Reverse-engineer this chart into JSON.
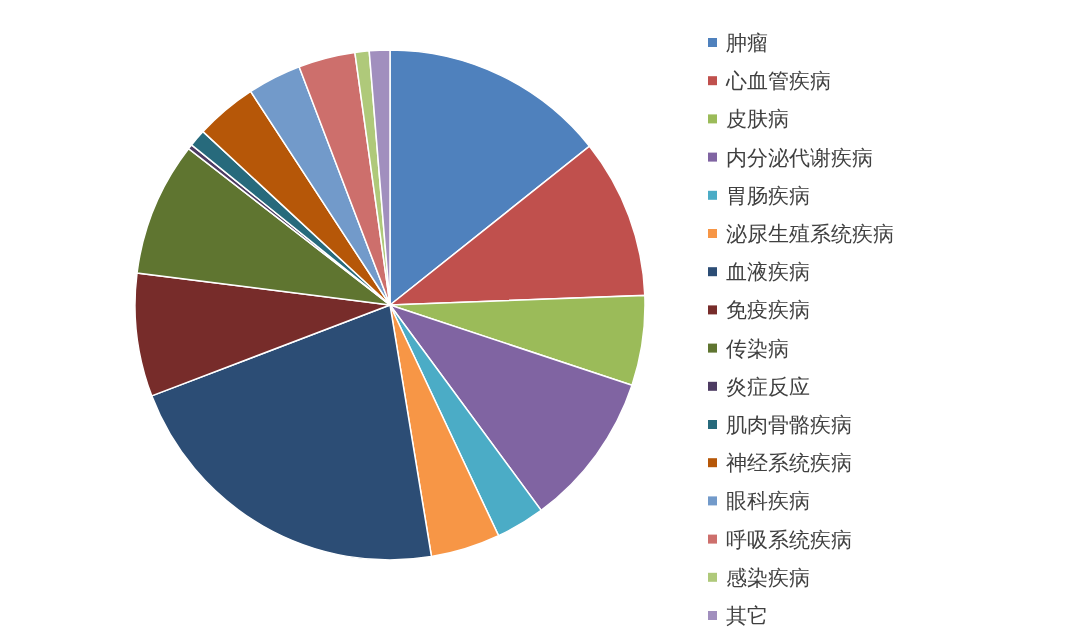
{
  "chart_data": {
    "type": "pie",
    "legend": "right",
    "categories": [
      "肿瘤",
      "心血管疾病",
      "皮肤病",
      "内分泌代谢疾病",
      "胃肠疾病",
      "泌尿生殖系统疾病",
      "血液疾病",
      "免疫疾病",
      "传染病",
      "炎症反应",
      "肌肉骨骼疾病",
      "神经系统疾病",
      "眼科疾病",
      "呼吸系统疾病",
      "感染疾病",
      "其它"
    ],
    "values": [
      14.3,
      10.1,
      5.7,
      9.8,
      3.1,
      4.4,
      21.8,
      7.8,
      8.5,
      0.3,
      1.1,
      3.9,
      3.4,
      3.6,
      0.9,
      1.3
    ],
    "colors": [
      "#4f81bd",
      "#c0504d",
      "#9bbb59",
      "#8064a2",
      "#4bacc6",
      "#f79646",
      "#2c4d75",
      "#772c2a",
      "#5f7530",
      "#4d3b62",
      "#276a7c",
      "#b65708",
      "#729aca",
      "#cd6f6c",
      "#afc97a",
      "#a18fbe"
    ]
  }
}
